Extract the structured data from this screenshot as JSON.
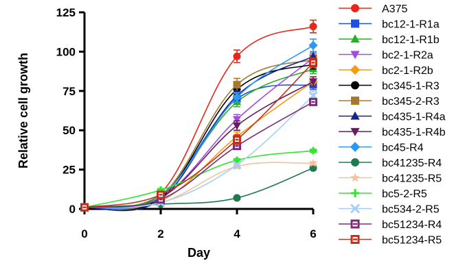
{
  "chart_data": {
    "type": "line",
    "xlabel": "Day",
    "ylabel": "Relative cell growth",
    "xlim": [
      0,
      6
    ],
    "ylim": [
      0,
      125
    ],
    "x_ticks": [
      "0",
      "2",
      "4",
      "6"
    ],
    "y_ticks": [
      "0",
      "25",
      "50",
      "75",
      "100",
      "125"
    ],
    "x": [
      0,
      2,
      4,
      6
    ],
    "legend_position": "right",
    "series": [
      {
        "name": "A375",
        "values": [
          1,
          10,
          97,
          116
        ],
        "error": [
          0,
          1,
          4,
          4
        ],
        "color": "#e8261b",
        "marker": "circle"
      },
      {
        "name": "bc12-1-R1a",
        "values": [
          1,
          8,
          70,
          79
        ],
        "error": [
          0,
          1,
          3,
          3
        ],
        "color": "#1f4fe0",
        "marker": "square"
      },
      {
        "name": "bc12-1-R1b",
        "values": [
          1,
          9,
          68,
          89
        ],
        "error": [
          0,
          1,
          3,
          3
        ],
        "color": "#22b322",
        "marker": "triangle-up"
      },
      {
        "name": "bc2-1-R2a",
        "values": [
          1,
          7,
          57,
          96
        ],
        "error": [
          0,
          1,
          3,
          3
        ],
        "color": "#a24be0",
        "marker": "triangle-down"
      },
      {
        "name": "bc2-1-R2b",
        "values": [
          1,
          5,
          46,
          81
        ],
        "error": [
          0,
          1,
          3,
          3
        ],
        "color": "#f59b17",
        "marker": "diamond"
      },
      {
        "name": "bc345-1-R3",
        "values": [
          1,
          7,
          76,
          92
        ],
        "error": [
          0,
          1,
          3,
          3
        ],
        "color": "#000000",
        "marker": "circle"
      },
      {
        "name": "bc345-2-R3",
        "values": [
          1,
          8,
          79,
          95
        ],
        "error": [
          0,
          1,
          4,
          3
        ],
        "color": "#a67a2e",
        "marker": "square"
      },
      {
        "name": "bc435-1-R4a",
        "values": [
          1,
          6,
          72,
          97
        ],
        "error": [
          0,
          1,
          3,
          3
        ],
        "color": "#11248f",
        "marker": "triangle-up"
      },
      {
        "name": "bc435-1-R4b",
        "values": [
          1,
          7,
          53,
          81
        ],
        "error": [
          0,
          1,
          3,
          3
        ],
        "color": "#6b1a5b",
        "marker": "triangle-down"
      },
      {
        "name": "bc45-R4",
        "values": [
          1,
          8,
          71,
          104
        ],
        "error": [
          0,
          1,
          3,
          4
        ],
        "color": "#2c98f0",
        "marker": "diamond"
      },
      {
        "name": "bc41235-R4",
        "values": [
          1,
          3,
          7,
          26
        ],
        "error": [
          0,
          0,
          1,
          1
        ],
        "color": "#1f7a50",
        "marker": "circle"
      },
      {
        "name": "bc41235-R5",
        "values": [
          1,
          4,
          27,
          29
        ],
        "error": [
          0,
          0,
          1,
          1
        ],
        "color": "#f5c199",
        "marker": "star"
      },
      {
        "name": "bc5-2-R5",
        "values": [
          1,
          12,
          31,
          37
        ],
        "error": [
          0,
          1,
          1,
          1
        ],
        "color": "#2ee82e",
        "marker": "plus"
      },
      {
        "name": "bc534-2-R5",
        "values": [
          1,
          4,
          28,
          72
        ],
        "error": [
          0,
          0,
          1,
          3
        ],
        "color": "#a8cdf5",
        "marker": "x"
      },
      {
        "name": "bc51234-R4",
        "values": [
          1,
          6,
          40,
          68
        ],
        "error": [
          0,
          1,
          2,
          2
        ],
        "color": "#7b2a78",
        "marker": "square-minus"
      },
      {
        "name": "bc51234-R5",
        "values": [
          1,
          9,
          44,
          93
        ],
        "error": [
          0,
          1,
          3,
          3
        ],
        "color": "#c4301a",
        "marker": "square-minus"
      }
    ]
  }
}
